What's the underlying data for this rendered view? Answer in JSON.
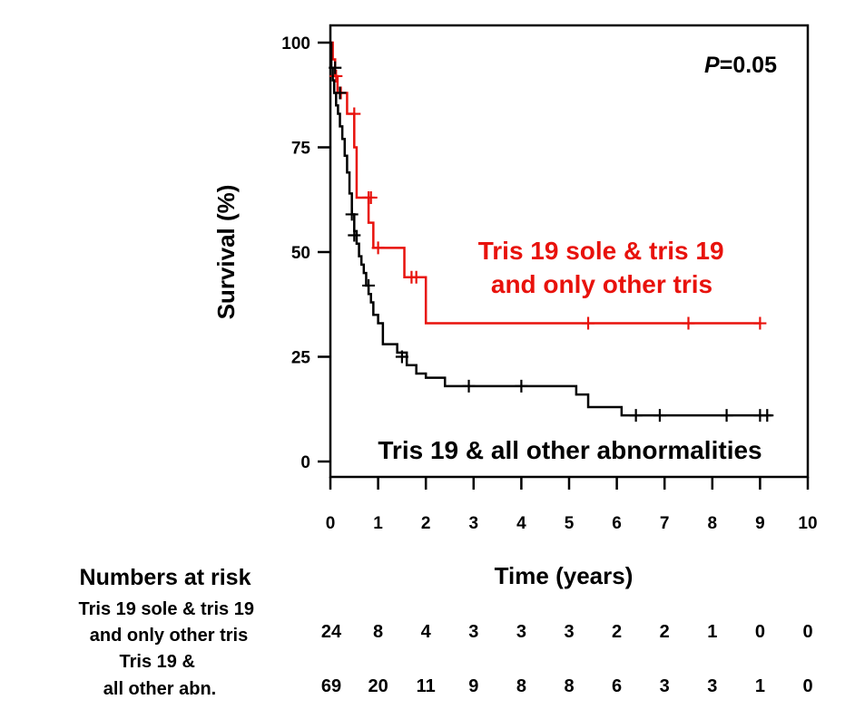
{
  "chart_data": {
    "type": "line",
    "subtype": "kaplan-meier",
    "xlabel": "Time (years)",
    "ylabel": "Survival (%)",
    "xlim": [
      0,
      10
    ],
    "ylim": [
      0,
      100
    ],
    "xticks": [
      "0",
      "1",
      "2",
      "3",
      "4",
      "5",
      "6",
      "7",
      "8",
      "9",
      "10"
    ],
    "yticks": [
      "0",
      "25",
      "50",
      "75",
      "100"
    ],
    "p_label": "P",
    "p_value": "=0.05",
    "series": [
      {
        "name": "Tris 19 sole & tris 19 and only other tris",
        "label_lines": [
          "Tris 19 sole & tris 19",
          "and only other tris"
        ],
        "color": "#e8120c",
        "steps": [
          [
            0,
            100
          ],
          [
            0.05,
            96
          ],
          [
            0.1,
            92
          ],
          [
            0.15,
            88
          ],
          [
            0.35,
            83
          ],
          [
            0.5,
            75
          ],
          [
            0.55,
            63
          ],
          [
            0.8,
            57
          ],
          [
            0.9,
            51
          ],
          [
            1.55,
            44
          ],
          [
            2.0,
            33
          ],
          [
            9.0,
            33
          ]
        ],
        "censored": [
          [
            0.12,
            92
          ],
          [
            0.22,
            88
          ],
          [
            0.5,
            83
          ],
          [
            0.8,
            63
          ],
          [
            0.85,
            63
          ],
          [
            1.0,
            51
          ],
          [
            1.7,
            44
          ],
          [
            1.8,
            44
          ],
          [
            5.4,
            33
          ],
          [
            7.5,
            33
          ],
          [
            9.0,
            33
          ]
        ]
      },
      {
        "name": "Tris 19 & all other abnormalities",
        "label_lines": [
          "Tris 19 & all other abnormalities"
        ],
        "color": "#000000",
        "steps": [
          [
            0,
            100
          ],
          [
            0.02,
            94
          ],
          [
            0.05,
            91
          ],
          [
            0.08,
            88
          ],
          [
            0.12,
            85
          ],
          [
            0.16,
            83
          ],
          [
            0.2,
            80
          ],
          [
            0.25,
            77
          ],
          [
            0.3,
            73
          ],
          [
            0.35,
            69
          ],
          [
            0.4,
            64
          ],
          [
            0.45,
            59
          ],
          [
            0.5,
            55
          ],
          [
            0.55,
            52
          ],
          [
            0.6,
            49
          ],
          [
            0.65,
            47
          ],
          [
            0.7,
            45
          ],
          [
            0.75,
            42
          ],
          [
            0.8,
            40
          ],
          [
            0.85,
            38
          ],
          [
            0.9,
            35
          ],
          [
            1.0,
            33
          ],
          [
            1.1,
            28
          ],
          [
            1.4,
            26
          ],
          [
            1.6,
            23
          ],
          [
            1.8,
            21
          ],
          [
            2.0,
            20
          ],
          [
            2.4,
            18
          ],
          [
            5.15,
            16
          ],
          [
            5.4,
            13
          ],
          [
            6.1,
            11
          ],
          [
            9.25,
            11
          ]
        ],
        "censored": [
          [
            0.1,
            94
          ],
          [
            0.2,
            88
          ],
          [
            0.45,
            59
          ],
          [
            0.5,
            54
          ],
          [
            0.8,
            42
          ],
          [
            1.5,
            25
          ],
          [
            2.9,
            18
          ],
          [
            4.0,
            18
          ],
          [
            6.4,
            11
          ],
          [
            6.9,
            11
          ],
          [
            8.3,
            11
          ],
          [
            9.0,
            11
          ],
          [
            9.15,
            11
          ]
        ]
      }
    ]
  },
  "risk_table": {
    "title": "Numbers at risk",
    "groups": [
      {
        "label_lines": [
          "Tris 19 sole & tris 19",
          "and only other tris"
        ],
        "values": [
          "24",
          "8",
          "4",
          "3",
          "3",
          "3",
          "2",
          "2",
          "1",
          "0",
          "0"
        ]
      },
      {
        "label_lines": [
          "Tris 19 &",
          "all other abn."
        ],
        "values": [
          "69",
          "20",
          "11",
          "9",
          "8",
          "8",
          "6",
          "3",
          "3",
          "1",
          "0"
        ]
      }
    ]
  }
}
